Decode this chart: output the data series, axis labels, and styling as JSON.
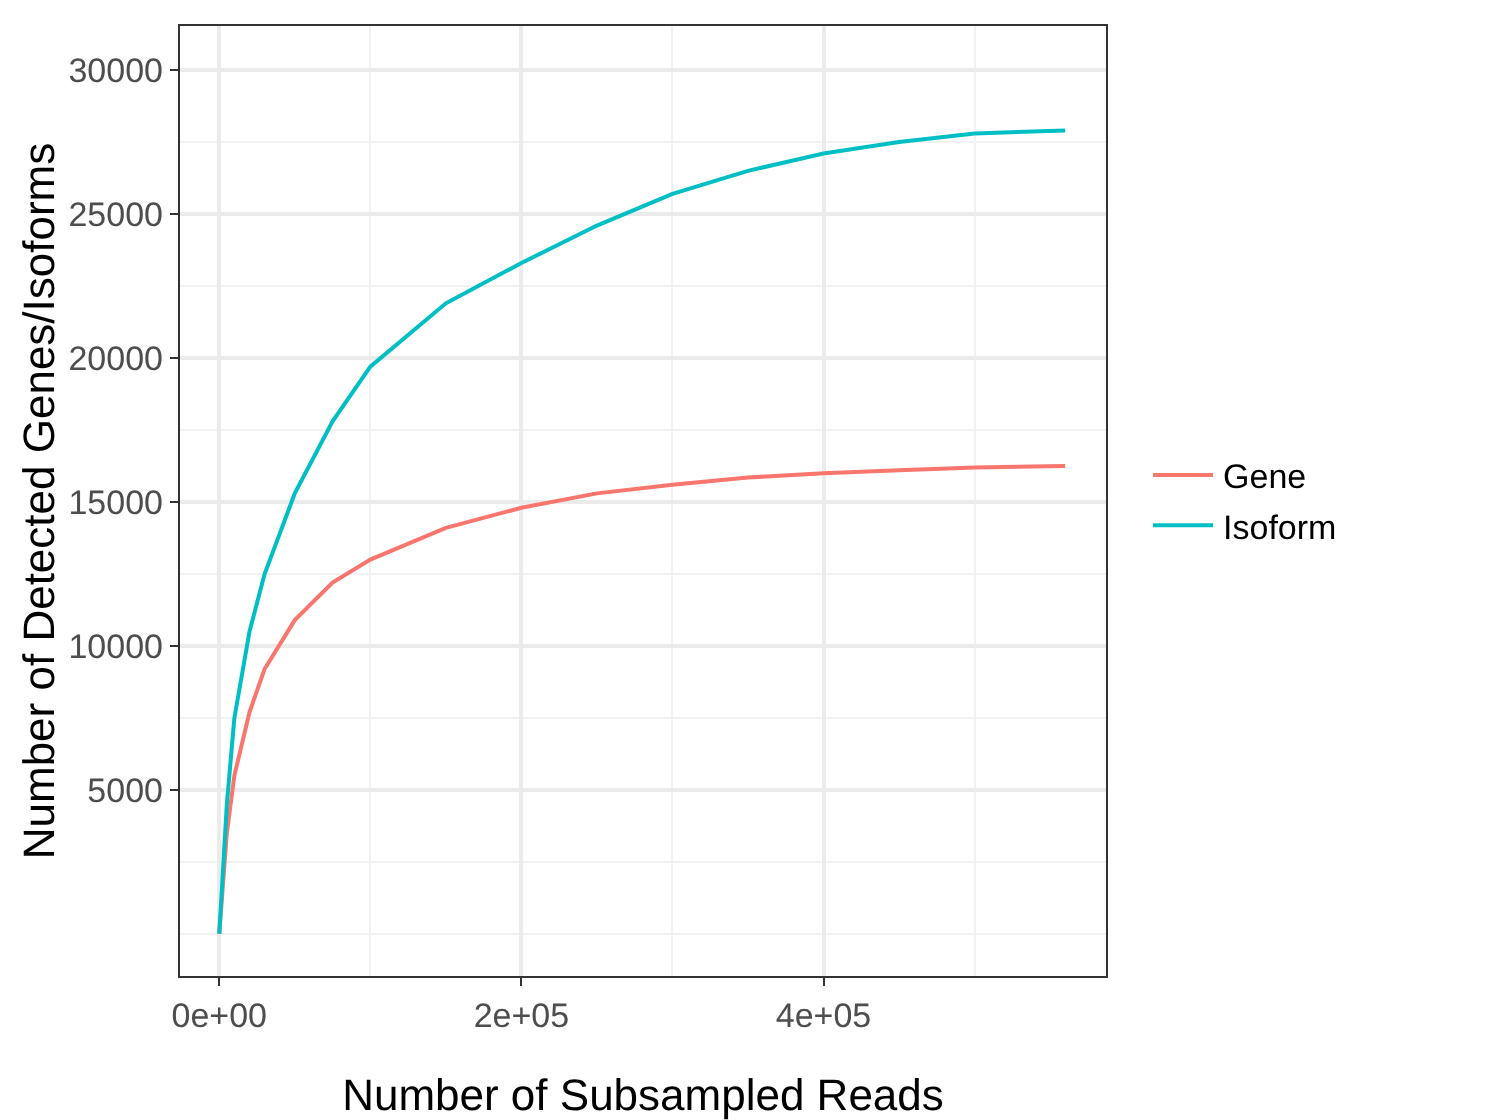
{
  "chart_data": {
    "type": "line",
    "xlabel": "Number of Subsampled Reads",
    "ylabel": "Number of Detected Genes/Isoforms",
    "x": [
      0,
      5000,
      10000,
      20000,
      30000,
      50000,
      75000,
      100000,
      150000,
      200000,
      250000,
      300000,
      350000,
      400000,
      450000,
      500000,
      560000
    ],
    "series": [
      {
        "name": "Gene",
        "color": "#f8766d",
        "values": [
          0,
          3500,
          5500,
          7700,
          9200,
          10900,
          12200,
          13000,
          14100,
          14800,
          15300,
          15600,
          15850,
          16000,
          16100,
          16200,
          16250
        ]
      },
      {
        "name": "Isoform",
        "color": "#00bfc4",
        "values": [
          0,
          4500,
          7500,
          10500,
          12500,
          15300,
          17800,
          19700,
          21900,
          23300,
          24600,
          25700,
          26500,
          27100,
          27500,
          27800,
          27900
        ]
      }
    ],
    "xlim": [
      -26000,
      587000
    ],
    "xticks": [
      {
        "value": 0,
        "label": "0e+00"
      },
      {
        "value": 200000,
        "label": "2e+05"
      },
      {
        "value": 400000,
        "label": "4e+05"
      }
    ],
    "ylim": [
      -1460,
      31530
    ],
    "yticks": [
      5000,
      10000,
      15000,
      20000,
      25000,
      30000
    ],
    "grid": true,
    "legend": "right",
    "marker": "none",
    "line_style": "solid"
  }
}
